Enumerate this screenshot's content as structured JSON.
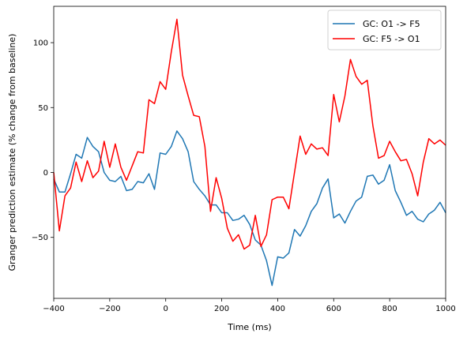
{
  "chart_data": {
    "type": "line",
    "title": "",
    "xlabel": "Time (ms)",
    "ylabel": "Granger prediction estimate (% change from baseline)",
    "xlim": [
      -400,
      1000
    ],
    "ylim": [
      -97,
      128
    ],
    "xticks": [
      -400,
      -200,
      0,
      200,
      400,
      600,
      800,
      1000
    ],
    "yticks": [
      -50,
      0,
      50,
      100
    ],
    "grid": false,
    "legend_position": "top-right",
    "series": [
      {
        "name": "GC: O1 -> F5",
        "color": "#1f77b4",
        "x": [
          -400,
          -380,
          -360,
          -340,
          -320,
          -300,
          -280,
          -260,
          -240,
          -220,
          -200,
          -180,
          -160,
          -140,
          -120,
          -100,
          -80,
          -60,
          -40,
          -20,
          0,
          20,
          40,
          60,
          80,
          100,
          120,
          140,
          160,
          180,
          200,
          220,
          240,
          260,
          280,
          300,
          320,
          340,
          360,
          380,
          400,
          420,
          440,
          460,
          480,
          500,
          520,
          540,
          560,
          580,
          600,
          620,
          640,
          660,
          680,
          700,
          720,
          740,
          760,
          780,
          800,
          820,
          840,
          860,
          880,
          900,
          920,
          940,
          960,
          980,
          1000
        ],
        "y": [
          -5,
          -15,
          -15,
          -1,
          14,
          11,
          27,
          20,
          16,
          0,
          -6,
          -7,
          -3,
          -14,
          -13,
          -7,
          -8,
          -1,
          -13,
          15,
          14,
          20,
          32,
          26,
          16,
          -7,
          -13,
          -18,
          -25,
          -25,
          -31,
          -31,
          -37,
          -36,
          -33,
          -40,
          -52,
          -56,
          -68,
          -87,
          -65,
          -66,
          -62,
          -44,
          -49,
          -41,
          -30,
          -24,
          -12,
          -5,
          -35,
          -32,
          -39,
          -30,
          -22,
          -19,
          -3,
          -2,
          -9,
          -6,
          6,
          -14,
          -23,
          -33,
          -30,
          -36,
          -38,
          -32,
          -29,
          -23,
          -31
        ]
      },
      {
        "name": "GC: F5 -> O1",
        "color": "#ff0000",
        "x": [
          -400,
          -380,
          -360,
          -340,
          -320,
          -300,
          -280,
          -260,
          -240,
          -220,
          -200,
          -180,
          -160,
          -140,
          -120,
          -100,
          -80,
          -60,
          -40,
          -20,
          0,
          20,
          40,
          60,
          80,
          100,
          120,
          140,
          160,
          180,
          200,
          220,
          240,
          260,
          280,
          300,
          320,
          340,
          360,
          380,
          400,
          420,
          440,
          460,
          480,
          500,
          520,
          540,
          560,
          580,
          600,
          620,
          640,
          660,
          680,
          700,
          720,
          740,
          760,
          780,
          800,
          820,
          840,
          860,
          880,
          900,
          920,
          940,
          960,
          980,
          1000
        ],
        "y": [
          0,
          -45,
          -18,
          -12,
          8,
          -7,
          9,
          -4,
          1,
          24,
          4,
          22,
          4,
          -6,
          5,
          16,
          15,
          56,
          53,
          70,
          64,
          93,
          118,
          75,
          59,
          44,
          43,
          20,
          -30,
          -4,
          -20,
          -43,
          -53,
          -48,
          -59,
          -56,
          -33,
          -57,
          -48,
          -21,
          -19,
          -19,
          -28,
          0,
          28,
          14,
          22,
          18,
          19,
          13,
          60,
          39,
          59,
          87,
          74,
          68,
          71,
          36,
          11,
          13,
          24,
          16,
          9,
          10,
          -1,
          -18,
          8,
          26,
          22,
          25,
          21
        ]
      }
    ]
  }
}
